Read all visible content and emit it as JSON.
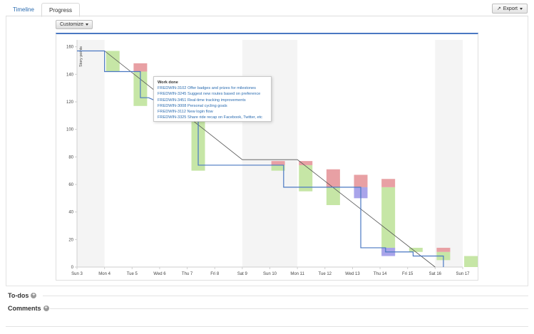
{
  "tabs": [
    {
      "label": "Timeline",
      "active": false
    },
    {
      "label": "Progress",
      "active": true
    }
  ],
  "toolbar": {
    "export_label": "Export",
    "customize_label": "Customize"
  },
  "tooltip": {
    "title": "Work done",
    "items": [
      "FREDWIN-3102 Offer badges and prizes for milestones",
      "FREDWIN-3245 Suggest new routes based on preference",
      "FREDWIN-3451 Real-time tracking improvements",
      "FREDWIN-3008 Personal cycling goals",
      "FREDWIN-3112 New login flow",
      "FREDWIN-3325 Share ride recap on Facebook, Twitter, etc"
    ]
  },
  "sections": {
    "todos": "To-dos",
    "comments": "Comments"
  },
  "colors": {
    "accent": "#4a78c2",
    "scope_added": "#e8a0a4",
    "work_done": "#c6e6a6",
    "scope_removed": "#a9a4ea",
    "guideline": "#555555",
    "remaining": "#4a78c2",
    "weekend": "#f4f4f4"
  },
  "chart_data": {
    "type": "line",
    "title": "",
    "xlabel": "",
    "ylabel": "Story points",
    "ylim": [
      0,
      165
    ],
    "categories": [
      "Sun 3",
      "Mon 4",
      "Tue 5",
      "Wed 6",
      "Thu 7",
      "Fri 8",
      "Sat 9",
      "Sun 10",
      "Mon 11",
      "Tue 12",
      "Wed 13",
      "Thu 14",
      "Fri 15",
      "Sat 16",
      "Sun 17"
    ],
    "yticks": [
      0,
      20,
      40,
      60,
      80,
      100,
      120,
      140,
      160
    ],
    "weekend_bands": [
      [
        0,
        1
      ],
      [
        6,
        8
      ],
      [
        13,
        14
      ]
    ],
    "guideline": [
      [
        0,
        157
      ],
      [
        1,
        157
      ],
      [
        6,
        78
      ],
      [
        8,
        78
      ],
      [
        13,
        0
      ]
    ],
    "remaining": [
      [
        0,
        157
      ],
      [
        1,
        157
      ],
      [
        1,
        142
      ],
      [
        2.3,
        142
      ],
      [
        2.3,
        123
      ],
      [
        2.6,
        123
      ],
      [
        4.4,
        107
      ],
      [
        4.4,
        74
      ],
      [
        7.5,
        74
      ],
      [
        7.5,
        58
      ],
      [
        10.3,
        58
      ],
      [
        10.3,
        14
      ],
      [
        11.2,
        14
      ],
      [
        11.2,
        11
      ],
      [
        12.2,
        11
      ],
      [
        12.2,
        8
      ],
      [
        13,
        8
      ],
      [
        13.3,
        8
      ],
      [
        13.3,
        0
      ]
    ],
    "work_done": [
      {
        "x": 1.3,
        "from": 157,
        "to": 142
      },
      {
        "x": 2.3,
        "from": 142,
        "to": 117
      },
      {
        "x": 4.4,
        "from": 107,
        "to": 70
      },
      {
        "x": 7.3,
        "from": 74,
        "to": 70
      },
      {
        "x": 8.3,
        "from": 74,
        "to": 55
      },
      {
        "x": 9.3,
        "from": 64,
        "to": 45
      },
      {
        "x": 10.3,
        "from": 60,
        "to": 53
      },
      {
        "x": 11.3,
        "from": 58,
        "to": 9
      },
      {
        "x": 12.3,
        "from": 14,
        "to": 11
      },
      {
        "x": 13.3,
        "from": 11,
        "to": 5
      },
      {
        "x": 14.3,
        "from": 8,
        "to": 0
      }
    ],
    "scope_added": [
      {
        "x": 2.3,
        "from": 142,
        "to": 148
      },
      {
        "x": 7.3,
        "from": 74,
        "to": 77
      },
      {
        "x": 8.3,
        "from": 74,
        "to": 77
      },
      {
        "x": 9.3,
        "from": 58,
        "to": 71
      },
      {
        "x": 10.3,
        "from": 58,
        "to": 67
      },
      {
        "x": 11.3,
        "from": 58,
        "to": 64
      },
      {
        "x": 13.3,
        "from": 11,
        "to": 14
      }
    ],
    "scope_removed": [
      {
        "x": 10.3,
        "from": 58,
        "to": 50
      },
      {
        "x": 11.3,
        "from": 14,
        "to": 8
      }
    ]
  }
}
